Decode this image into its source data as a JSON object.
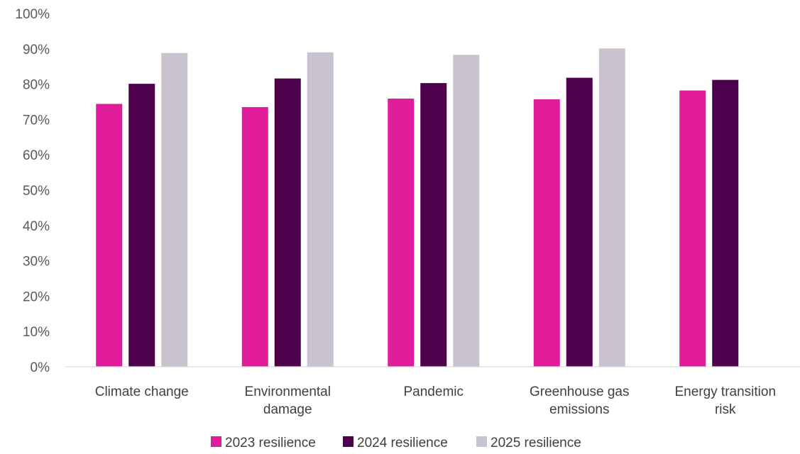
{
  "chart_data": {
    "type": "bar",
    "categories": [
      [
        "Climate change"
      ],
      [
        "Environmental",
        "damage"
      ],
      [
        "Pandemic"
      ],
      [
        "Greenhouse gas",
        "emissions"
      ],
      [
        "Energy transition",
        "risk"
      ]
    ],
    "series": [
      {
        "name": "2023 resilience",
        "color": "#e01c9b",
        "values": [
          74.4,
          73.5,
          75.9,
          75.7,
          78.2
        ]
      },
      {
        "name": "2024 resilience",
        "color": "#4d004b",
        "values": [
          80.1,
          81.6,
          80.3,
          81.8,
          81.2
        ]
      },
      {
        "name": "2025 resilience",
        "color": "#c9c3cf",
        "values": [
          88.8,
          89.0,
          88.3,
          90.1,
          null
        ]
      }
    ],
    "ylim": [
      0,
      100
    ],
    "yticks": [
      0,
      10,
      20,
      30,
      40,
      50,
      60,
      70,
      80,
      90,
      100
    ],
    "ytick_labels": [
      "0%",
      "10%",
      "20%",
      "30%",
      "40%",
      "50%",
      "60%",
      "70%",
      "80%",
      "90%",
      "100%"
    ],
    "title": "",
    "xlabel": "",
    "ylabel": "",
    "grid": false,
    "legend_position": "bottom"
  }
}
